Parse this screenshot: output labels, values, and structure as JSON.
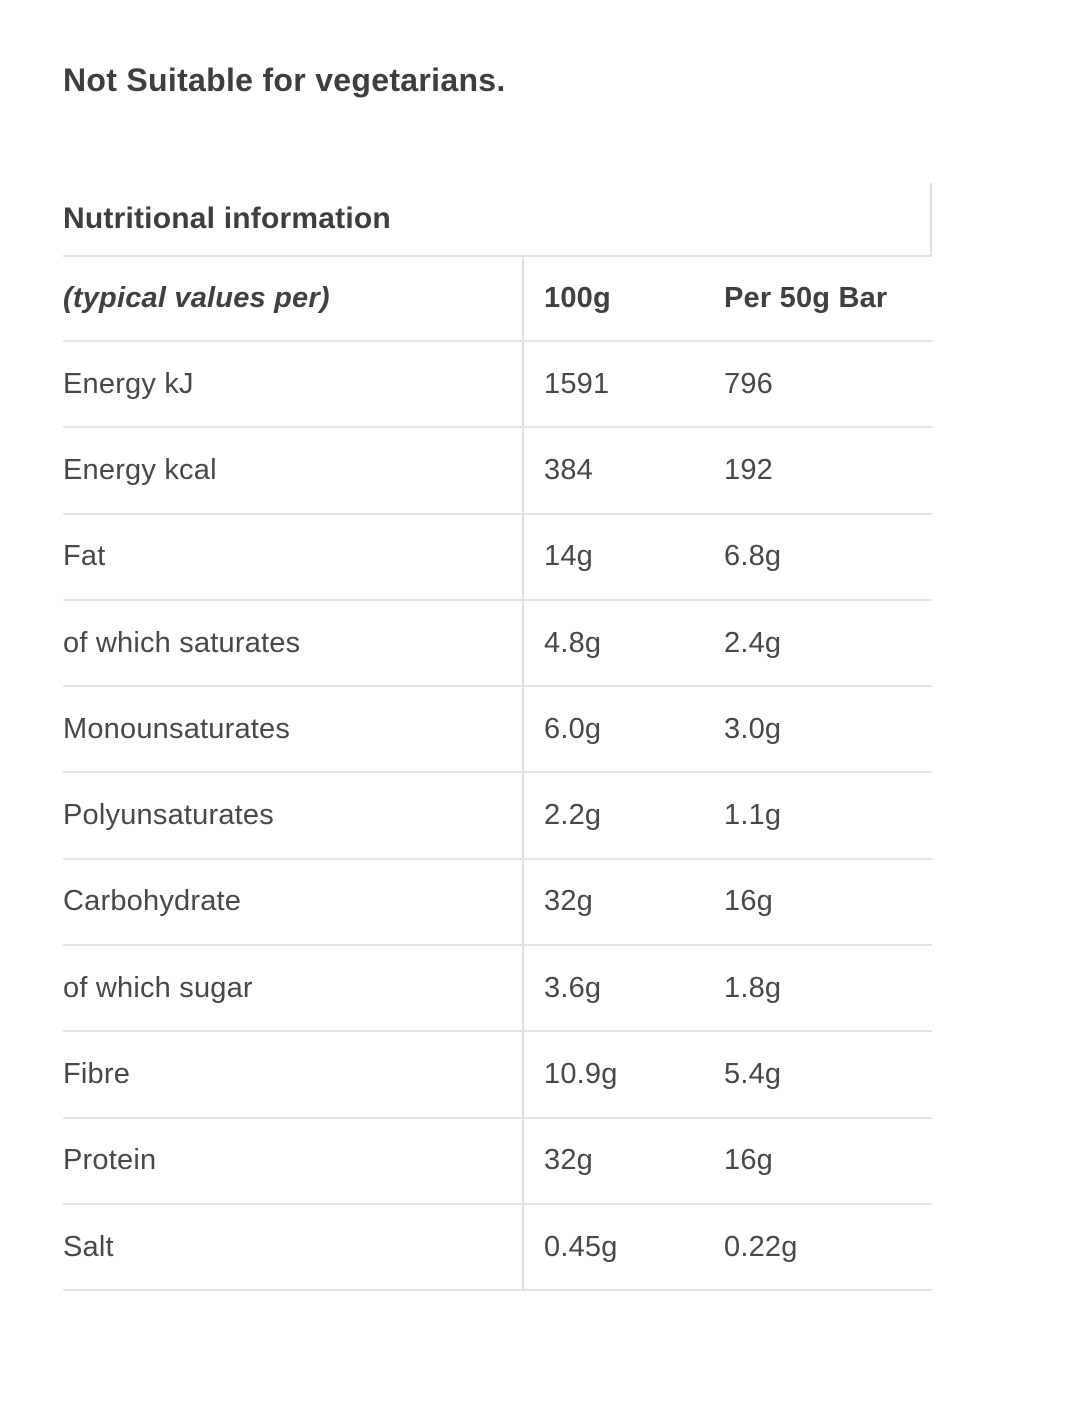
{
  "page_title": "Not Suitable for vegetarians.",
  "nutrition": {
    "section_title": "Nutritional information",
    "columns": {
      "label": "(typical values per)",
      "per_100g": "100g",
      "per_50g_bar": "Per 50g Bar"
    },
    "rows": [
      {
        "label": "Energy kJ",
        "per_100g": "1591",
        "per_50g_bar": "796"
      },
      {
        "label": "Energy kcal",
        "per_100g": "384",
        "per_50g_bar": "192"
      },
      {
        "label": "Fat",
        "per_100g": "14g",
        "per_50g_bar": "6.8g"
      },
      {
        "label": "of which saturates",
        "per_100g": "4.8g",
        "per_50g_bar": "2.4g"
      },
      {
        "label": "Monounsaturates",
        "per_100g": "6.0g",
        "per_50g_bar": "3.0g"
      },
      {
        "label": "Polyunsaturates",
        "per_100g": "2.2g",
        "per_50g_bar": "1.1g"
      },
      {
        "label": "Carbohydrate",
        "per_100g": "32g",
        "per_50g_bar": "16g"
      },
      {
        "label": "of which sugar",
        "per_100g": "3.6g",
        "per_50g_bar": "1.8g"
      },
      {
        "label": "Fibre",
        "per_100g": "10.9g",
        "per_50g_bar": "5.4g"
      },
      {
        "label": "Protein",
        "per_100g": "32g",
        "per_50g_bar": "16g"
      },
      {
        "label": "Salt",
        "per_100g": "0.45g",
        "per_50g_bar": "0.22g"
      }
    ]
  },
  "colors": {
    "background": "#ffffff",
    "heading_text": "#3d3d42",
    "body_text": "#48484c",
    "border": "#e2e2e2"
  }
}
